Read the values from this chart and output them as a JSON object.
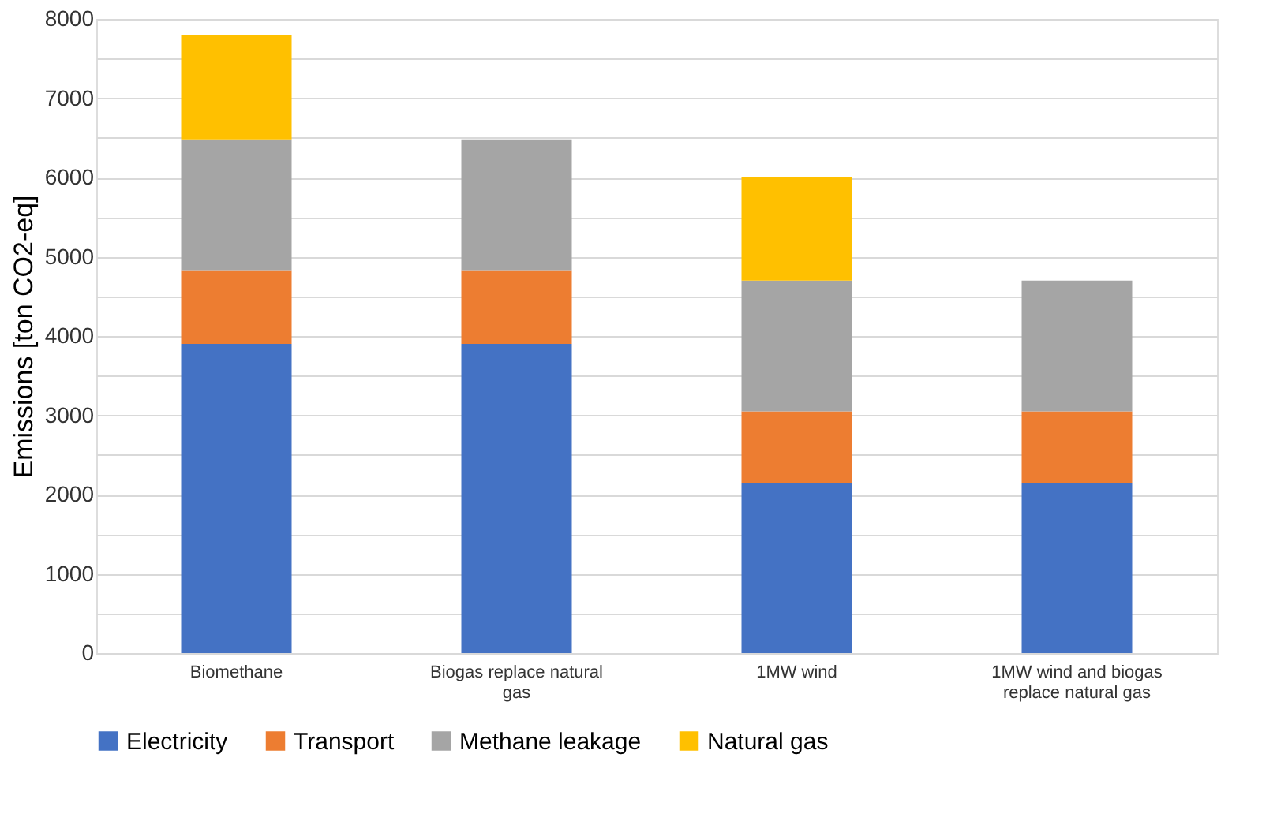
{
  "chart_data": {
    "type": "bar",
    "stacked": true,
    "ylabel": "Emissions [ton CO2-eq]",
    "categories": [
      "Biomethane",
      "Biogas replace natural gas",
      "1MW wind",
      "1MW wind and biogas replace natural gas"
    ],
    "series": [
      {
        "name": "Electricity",
        "color": "#4472c4",
        "values": [
          3900,
          3900,
          2150,
          2150
        ]
      },
      {
        "name": "Transport",
        "color": "#ed7d31",
        "values": [
          930,
          930,
          900,
          900
        ]
      },
      {
        "name": "Methane leakage",
        "color": "#a5a5a5",
        "values": [
          1650,
          1650,
          1650,
          1650
        ]
      },
      {
        "name": "Natural gas",
        "color": "#ffc000",
        "values": [
          1320,
          null,
          1300,
          null
        ]
      }
    ],
    "ylim": [
      0,
      8000
    ],
    "yticks": [
      0,
      {
        "value": 500,
        "label": null
      },
      1000,
      {
        "value": 1500,
        "label": null
      },
      2000,
      {
        "value": 2500,
        "label": null
      },
      3000,
      {
        "value": 3500,
        "label": null
      },
      4000,
      {
        "value": 4500,
        "label": null
      },
      5000,
      {
        "value": 5500,
        "label": null
      },
      6000,
      {
        "value": 6500,
        "label": null
      },
      7000,
      {
        "value": 7500,
        "label": null
      },
      8000
    ],
    "grid": true,
    "legend": "bottom"
  }
}
